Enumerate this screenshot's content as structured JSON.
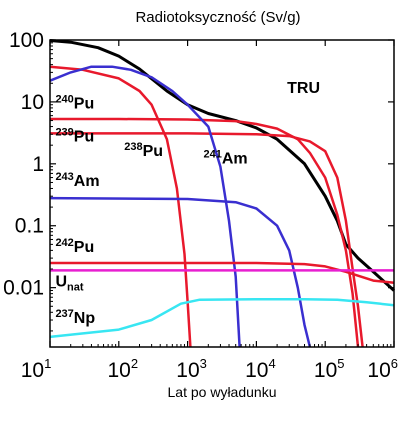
{
  "chart_data": {
    "type": "line",
    "title": "Radiotoksyczność (Sv/g)",
    "xlabel": "Lat po wyładunku",
    "ylabel": "",
    "x_scale": "log",
    "y_scale": "log",
    "xlim": [
      10,
      1000000
    ],
    "ylim": [
      0.0011,
      100
    ],
    "x_ticks": [
      {
        "value": 10,
        "base": "10",
        "exp": "1"
      },
      {
        "value": 100,
        "base": "10",
        "exp": "2"
      },
      {
        "value": 1000,
        "base": "10",
        "exp": "3"
      },
      {
        "value": 10000,
        "base": "10",
        "exp": "4"
      },
      {
        "value": 100000,
        "base": "10",
        "exp": "5"
      },
      {
        "value": 1000000,
        "base": "10",
        "exp": "6"
      }
    ],
    "y_ticks": [
      {
        "value": 100,
        "label": "100"
      },
      {
        "value": 10,
        "label": "10"
      },
      {
        "value": 1,
        "label": "1"
      },
      {
        "value": 0.1,
        "label": "0.1"
      },
      {
        "value": 0.01,
        "label": "0.01"
      }
    ],
    "grid": false,
    "series": [
      {
        "name": "TRU",
        "color": "#000000",
        "points": [
          [
            10,
            98
          ],
          [
            20,
            92
          ],
          [
            50,
            75
          ],
          [
            100,
            55
          ],
          [
            200,
            34
          ],
          [
            500,
            15
          ],
          [
            1000,
            9
          ],
          [
            2000,
            6.5
          ],
          [
            5000,
            5
          ],
          [
            10000,
            3.8
          ],
          [
            20000,
            2.5
          ],
          [
            50000,
            1
          ],
          [
            100000,
            0.3
          ],
          [
            150000,
            0.12
          ],
          [
            200000,
            0.05
          ],
          [
            300000,
            0.03
          ],
          [
            500000,
            0.018
          ],
          [
            1000000,
            0.009
          ]
        ],
        "label": {
          "prefix": "",
          "sup": "",
          "text": "TRU",
          "at": [
            28000,
            14
          ]
        }
      },
      {
        "name": "Pu-240",
        "color": "#e8192c",
        "points": [
          [
            10,
            5.3
          ],
          [
            100,
            5.3
          ],
          [
            1000,
            5.2
          ],
          [
            5000,
            4.9
          ],
          [
            10000,
            4.4
          ],
          [
            20000,
            3.7
          ],
          [
            40000,
            2.5
          ],
          [
            60000,
            1.5
          ],
          [
            100000,
            0.6
          ],
          [
            150000,
            0.15
          ],
          [
            200000,
            0.04
          ],
          [
            250000,
            0.008
          ],
          [
            300000,
            0.0011
          ]
        ],
        "label": {
          "prefix": "",
          "sup": "240",
          "text": "Pu",
          "at": [
            12,
            7.8
          ]
        }
      },
      {
        "name": "Pu-239",
        "color": "#e8192c",
        "points": [
          [
            10,
            3.1
          ],
          [
            1000,
            3.1
          ],
          [
            10000,
            3.0
          ],
          [
            30000,
            2.8
          ],
          [
            60000,
            2.3
          ],
          [
            100000,
            1.6
          ],
          [
            150000,
            0.6
          ],
          [
            200000,
            0.12
          ],
          [
            250000,
            0.02
          ],
          [
            300000,
            0.005
          ],
          [
            350000,
            0.0011
          ]
        ],
        "label": {
          "prefix": "",
          "sup": "239",
          "text": "Pu",
          "at": [
            12,
            2.3
          ]
        }
      },
      {
        "name": "Pu-238",
        "color": "#e8192c",
        "points": [
          [
            10,
            37
          ],
          [
            30,
            33
          ],
          [
            100,
            24
          ],
          [
            200,
            15
          ],
          [
            300,
            9
          ],
          [
            500,
            2.5
          ],
          [
            700,
            0.4
          ],
          [
            900,
            0.035
          ],
          [
            1000,
            0.006
          ],
          [
            1100,
            0.0011
          ]
        ],
        "label": {
          "prefix": "",
          "sup": "238",
          "text": "Pu",
          "at": [
            120,
            1.35
          ]
        }
      },
      {
        "name": "Am-241",
        "color": "#3a2fd0",
        "points": [
          [
            10,
            22
          ],
          [
            20,
            30
          ],
          [
            40,
            37
          ],
          [
            80,
            37
          ],
          [
            150,
            33
          ],
          [
            300,
            25
          ],
          [
            600,
            15
          ],
          [
            1000,
            9
          ],
          [
            2000,
            4
          ],
          [
            3000,
            0.9
          ],
          [
            4000,
            0.12
          ],
          [
            5000,
            0.015
          ],
          [
            5700,
            0.0011
          ]
        ],
        "label": {
          "prefix": "",
          "sup": "241",
          "text": "Am",
          "at": [
            1700,
            1.02
          ]
        }
      },
      {
        "name": "Am-243",
        "color": "#3a2fd0",
        "points": [
          [
            10,
            0.28
          ],
          [
            1000,
            0.27
          ],
          [
            5000,
            0.24
          ],
          [
            10000,
            0.19
          ],
          [
            20000,
            0.1
          ],
          [
            30000,
            0.04
          ],
          [
            40000,
            0.01
          ],
          [
            50000,
            0.0025
          ],
          [
            60000,
            0.0011
          ]
        ],
        "label": {
          "prefix": "",
          "sup": "243",
          "text": "Am",
          "at": [
            12,
            0.44
          ]
        }
      },
      {
        "name": "Pu-242",
        "color": "#e8192c",
        "points": [
          [
            10,
            0.025
          ],
          [
            10000,
            0.025
          ],
          [
            50000,
            0.024
          ],
          [
            100000,
            0.022
          ],
          [
            200000,
            0.018
          ],
          [
            500000,
            0.013
          ],
          [
            1000000,
            0.012
          ]
        ],
        "label": {
          "prefix": "",
          "sup": "242",
          "text": "Pu",
          "at": [
            12,
            0.038
          ]
        }
      },
      {
        "name": "U-nat",
        "color": "#e81fd0",
        "points": [
          [
            10,
            0.019
          ],
          [
            1000000,
            0.019
          ]
        ],
        "label": {
          "prefix": "U",
          "sup": "",
          "sub": "nat",
          "text": "",
          "at": [
            12,
            0.0105
          ]
        }
      },
      {
        "name": "Np-237",
        "color": "#38e6f2",
        "points": [
          [
            10,
            0.0016
          ],
          [
            100,
            0.0021
          ],
          [
            300,
            0.003
          ],
          [
            800,
            0.0055
          ],
          [
            1500,
            0.0064
          ],
          [
            10000,
            0.0065
          ],
          [
            50000,
            0.0065
          ],
          [
            150000,
            0.0064
          ],
          [
            400000,
            0.0058
          ],
          [
            1000000,
            0.0052
          ]
        ],
        "label": {
          "prefix": "",
          "sup": "237",
          "text": "Np",
          "at": [
            12,
            0.0027
          ]
        }
      }
    ]
  }
}
